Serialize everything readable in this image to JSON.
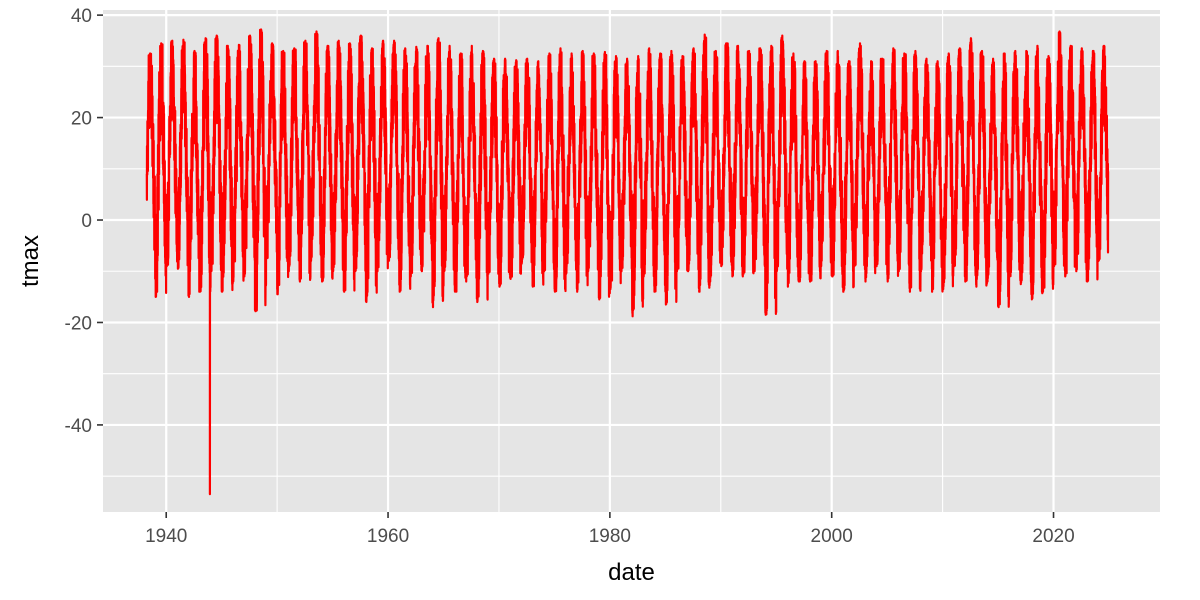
{
  "chart_data": {
    "type": "line",
    "title": "",
    "xlabel": "date",
    "ylabel": "tmax",
    "x_range": [
      "1938-01-01",
      "2025-01-01"
    ],
    "xlim": [
      1934.3,
      2029.6
    ],
    "ylim": [
      -57.0,
      41.0
    ],
    "x_ticks": [
      1940,
      1960,
      1980,
      2000,
      2020
    ],
    "x_tick_labels": [
      "1940",
      "1960",
      "1980",
      "2000",
      "2020"
    ],
    "y_ticks": [
      40,
      20,
      0,
      -20,
      -40
    ],
    "y_tick_labels": [
      "40",
      "20",
      "0",
      "-20",
      "-40"
    ],
    "grid": true,
    "background": "#e5e5e5",
    "grid_color": "#ffffff",
    "series": [
      {
        "color": "#ff0000",
        "annual_max": [
          [
            1938,
            32.5
          ],
          [
            1939,
            34.5
          ],
          [
            1940,
            35.0
          ],
          [
            1941,
            35.2
          ],
          [
            1942,
            33.0
          ],
          [
            1943,
            35.5
          ],
          [
            1944,
            36.0
          ],
          [
            1945,
            34.0
          ],
          [
            1946,
            34.2
          ],
          [
            1947,
            36.0
          ],
          [
            1948,
            37.2
          ],
          [
            1949,
            34.5
          ],
          [
            1950,
            33.0
          ],
          [
            1951,
            33.5
          ],
          [
            1952,
            35.0
          ],
          [
            1953,
            36.8
          ],
          [
            1954,
            34.0
          ],
          [
            1955,
            35.0
          ],
          [
            1956,
            34.5
          ],
          [
            1957,
            36.0
          ],
          [
            1958,
            33.5
          ],
          [
            1959,
            35.0
          ],
          [
            1960,
            35.0
          ],
          [
            1961,
            33.5
          ],
          [
            1962,
            33.8
          ],
          [
            1963,
            34.0
          ],
          [
            1964,
            35.5
          ],
          [
            1965,
            34.0
          ],
          [
            1966,
            32.5
          ],
          [
            1967,
            34.0
          ],
          [
            1968,
            33.0
          ],
          [
            1969,
            31.5
          ],
          [
            1970,
            31.5
          ],
          [
            1971,
            31.2
          ],
          [
            1972,
            31.5
          ],
          [
            1973,
            31.0
          ],
          [
            1974,
            32.5
          ],
          [
            1975,
            33.5
          ],
          [
            1976,
            32.5
          ],
          [
            1977,
            33.0
          ],
          [
            1978,
            32.5
          ],
          [
            1979,
            32.8
          ],
          [
            1980,
            32.0
          ],
          [
            1981,
            31.5
          ],
          [
            1982,
            32.0
          ],
          [
            1983,
            33.5
          ],
          [
            1984,
            32.5
          ],
          [
            1985,
            33.0
          ],
          [
            1986,
            32.0
          ],
          [
            1987,
            33.5
          ],
          [
            1988,
            36.2
          ],
          [
            1989,
            33.0
          ],
          [
            1990,
            34.5
          ],
          [
            1991,
            34.0
          ],
          [
            1992,
            33.0
          ],
          [
            1993,
            33.5
          ],
          [
            1994,
            34.0
          ],
          [
            1995,
            36.0
          ],
          [
            1996,
            32.5
          ],
          [
            1997,
            31.0
          ],
          [
            1998,
            31.0
          ],
          [
            1999,
            33.0
          ],
          [
            2000,
            33.0
          ],
          [
            2001,
            31.0
          ],
          [
            2002,
            34.5
          ],
          [
            2003,
            31.0
          ],
          [
            2004,
            31.5
          ],
          [
            2005,
            33.5
          ],
          [
            2006,
            32.5
          ],
          [
            2007,
            33.0
          ],
          [
            2008,
            31.5
          ],
          [
            2009,
            31.0
          ],
          [
            2010,
            32.5
          ],
          [
            2011,
            33.5
          ],
          [
            2012,
            35.5
          ],
          [
            2013,
            33.0
          ],
          [
            2014,
            31.5
          ],
          [
            2015,
            32.5
          ],
          [
            2016,
            33.0
          ],
          [
            2017,
            33.0
          ],
          [
            2018,
            34.0
          ],
          [
            2019,
            32.0
          ],
          [
            2020,
            36.8
          ],
          [
            2021,
            34.0
          ],
          [
            2022,
            33.5
          ],
          [
            2023,
            33.0
          ],
          [
            2024,
            34.0
          ]
        ],
        "annual_min": [
          [
            1938,
            -6.0
          ],
          [
            1939,
            -15.0
          ],
          [
            1940,
            -9.0
          ],
          [
            1941,
            -9.5
          ],
          [
            1942,
            -15.0
          ],
          [
            1943,
            -14.0
          ],
          [
            1944,
            -10.0
          ],
          [
            1945,
            -14.0
          ],
          [
            1946,
            -12.0
          ],
          [
            1947,
            -11.0
          ],
          [
            1948,
            -17.8
          ],
          [
            1949,
            -7.5
          ],
          [
            1950,
            -14.5
          ],
          [
            1951,
            -10.0
          ],
          [
            1952,
            -12.0
          ],
          [
            1953,
            -8.0
          ],
          [
            1954,
            -12.0
          ],
          [
            1955,
            -10.0
          ],
          [
            1956,
            -14.0
          ],
          [
            1957,
            -10.0
          ],
          [
            1958,
            -16.0
          ],
          [
            1959,
            -10.0
          ],
          [
            1960,
            -8.0
          ],
          [
            1961,
            -14.0
          ],
          [
            1962,
            -11.0
          ],
          [
            1963,
            -10.0
          ],
          [
            1964,
            -17.0
          ],
          [
            1965,
            -10.0
          ],
          [
            1966,
            -14.0
          ],
          [
            1967,
            -12.0
          ],
          [
            1968,
            -16.0
          ],
          [
            1969,
            -10.5
          ],
          [
            1970,
            -13.0
          ],
          [
            1971,
            -11.5
          ],
          [
            1972,
            -8.5
          ],
          [
            1973,
            -13.0
          ],
          [
            1974,
            -10.0
          ],
          [
            1975,
            -14.0
          ],
          [
            1976,
            -10.5
          ],
          [
            1977,
            -14.0
          ],
          [
            1978,
            -10.0
          ],
          [
            1979,
            -15.5
          ],
          [
            1980,
            -13.5
          ],
          [
            1981,
            -10.0
          ],
          [
            1982,
            -18.8
          ],
          [
            1983,
            -11.0
          ],
          [
            1984,
            -14.0
          ],
          [
            1985,
            -16.5
          ],
          [
            1986,
            -10.0
          ],
          [
            1987,
            -10.0
          ],
          [
            1988,
            -14.0
          ],
          [
            1989,
            -12.0
          ],
          [
            1990,
            -9.0
          ],
          [
            1991,
            -11.0
          ],
          [
            1992,
            -10.5
          ],
          [
            1993,
            -10.0
          ],
          [
            1994,
            -18.5
          ],
          [
            1995,
            -10.0
          ],
          [
            1996,
            -13.0
          ],
          [
            1997,
            -12.0
          ],
          [
            1998,
            -12.0
          ],
          [
            1999,
            -9.0
          ],
          [
            2000,
            -11.0
          ],
          [
            2001,
            -14.0
          ],
          [
            2002,
            -9.0
          ],
          [
            2003,
            -12.0
          ],
          [
            2004,
            -9.0
          ],
          [
            2005,
            -12.0
          ],
          [
            2006,
            -10.0
          ],
          [
            2007,
            -14.0
          ],
          [
            2008,
            -10.0
          ],
          [
            2009,
            -14.0
          ],
          [
            2010,
            -13.5
          ],
          [
            2011,
            -9.0
          ],
          [
            2012,
            -12.0
          ],
          [
            2013,
            -13.0
          ],
          [
            2014,
            -12.0
          ],
          [
            2015,
            -17.0
          ],
          [
            2016,
            -11.0
          ],
          [
            2017,
            -12.5
          ],
          [
            2018,
            -15.5
          ],
          [
            2019,
            -14.0
          ],
          [
            2020,
            -9.0
          ],
          [
            2021,
            -11.0
          ],
          [
            2022,
            -10.0
          ],
          [
            2023,
            -12.0
          ],
          [
            2024,
            -8.0
          ]
        ],
        "outliers": [
          [
            "1943-12-10",
            -53.5
          ]
        ],
        "start": [
          "1938-04-01",
          9.0
        ],
        "end": [
          "2024-12-01",
          9.5
        ]
      }
    ]
  }
}
